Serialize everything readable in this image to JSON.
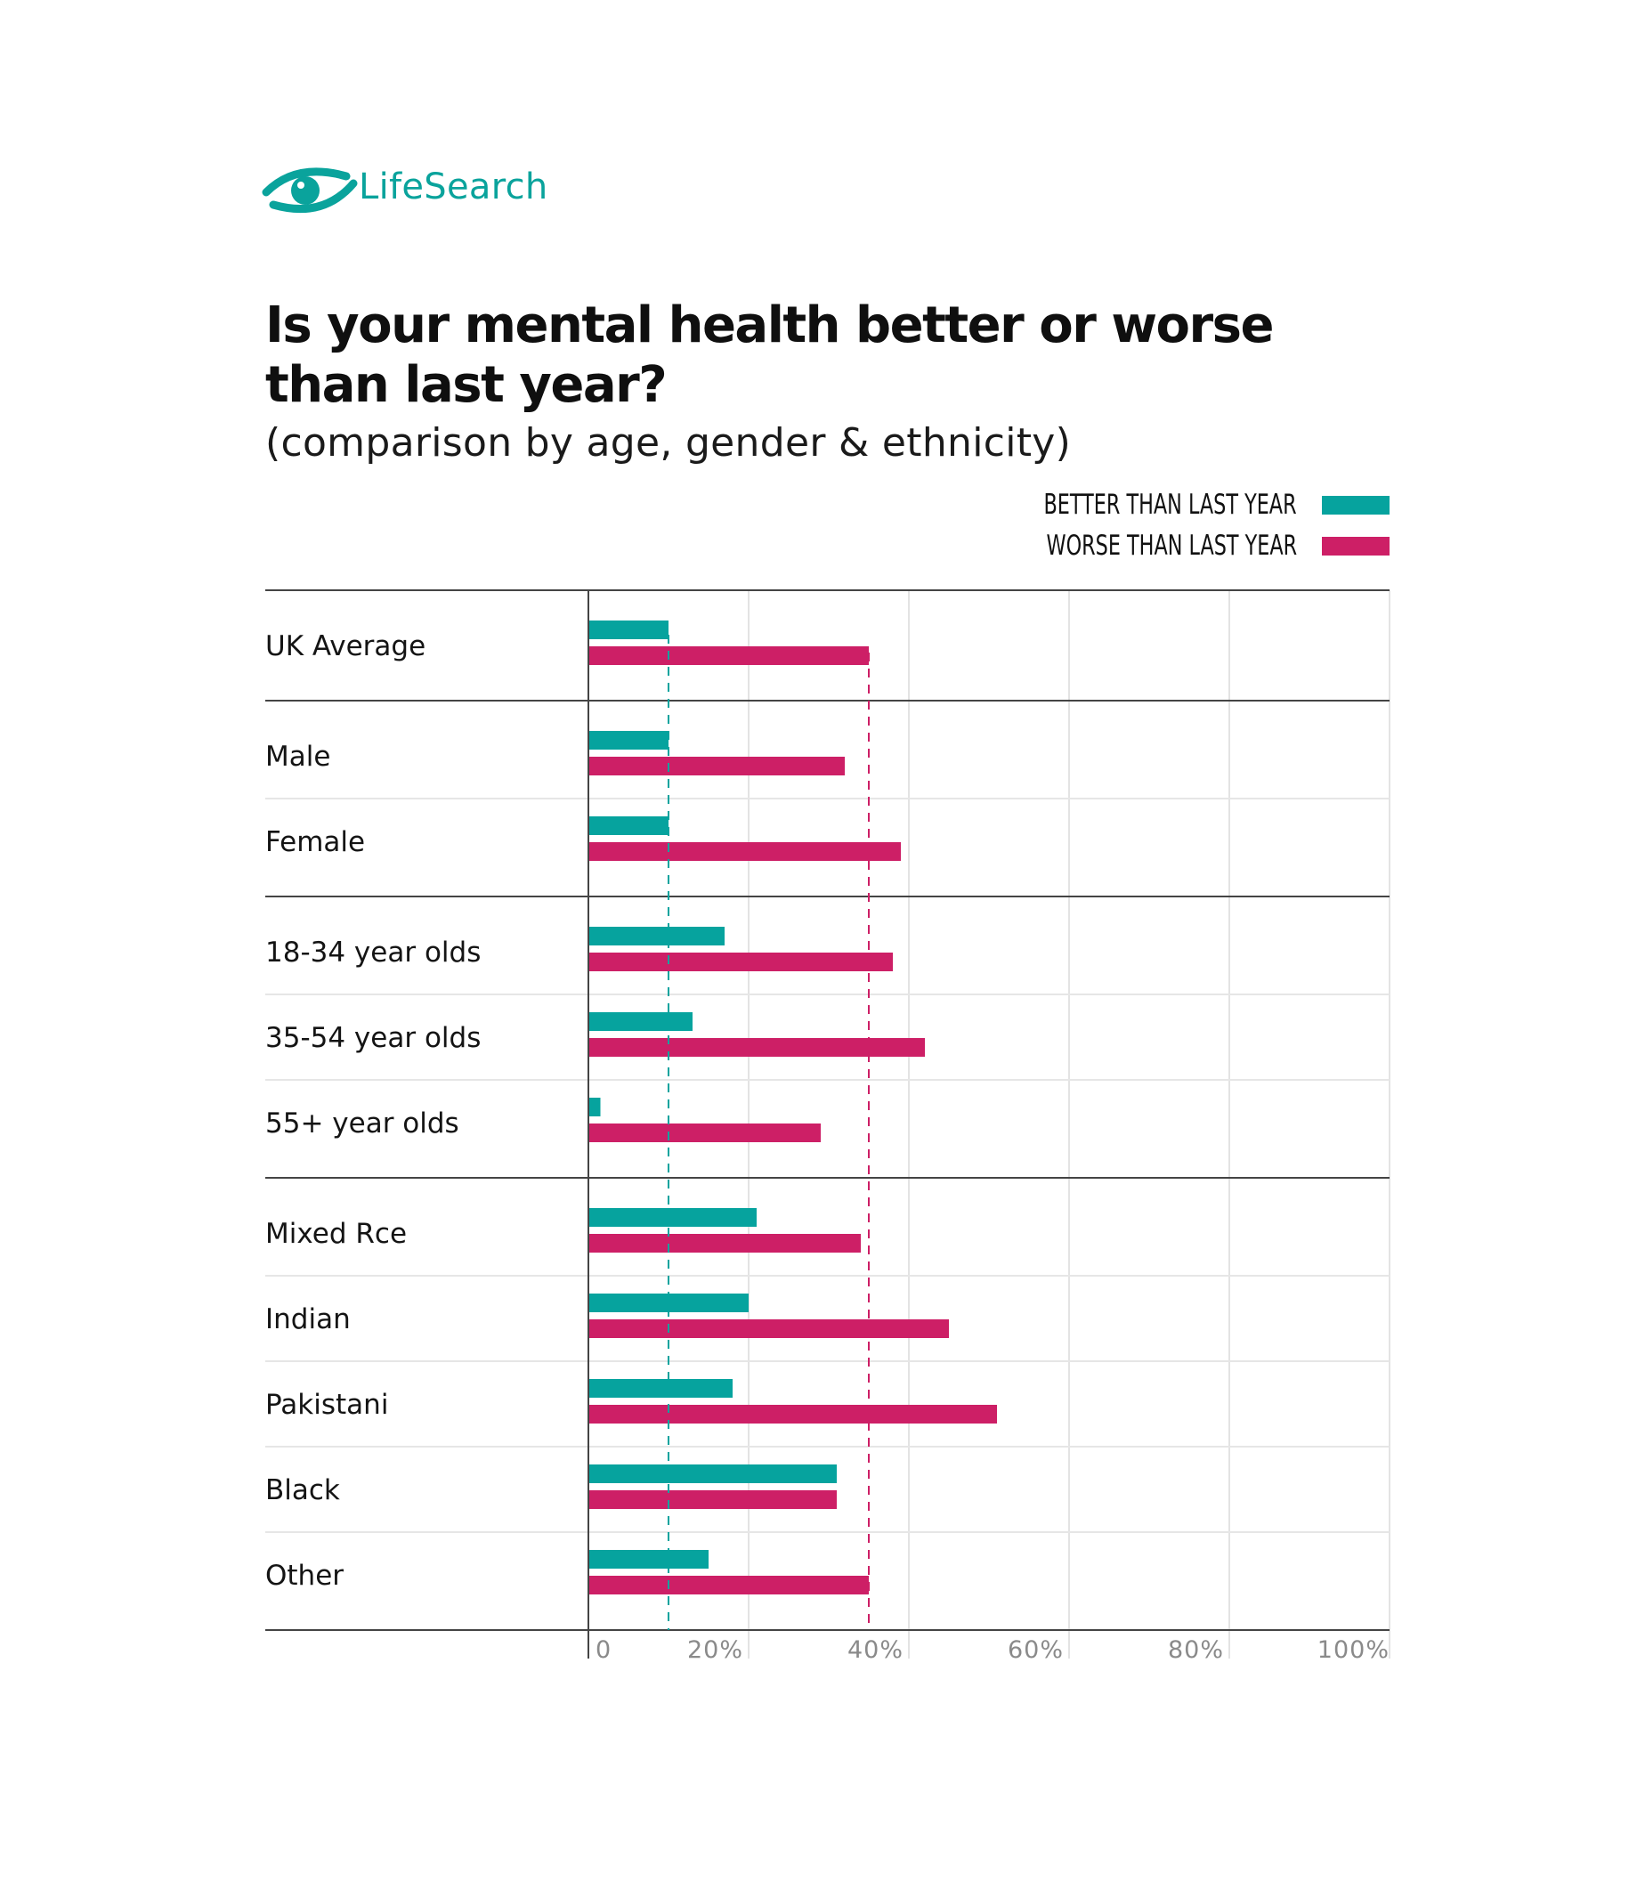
{
  "brand": {
    "name": "LifeSearch",
    "color": "#0aa39c",
    "icon": "eye-icon"
  },
  "colors": {
    "better": "#06a39e",
    "worse": "#cd1f66",
    "text": "#111111"
  },
  "chart_data": {
    "type": "bar",
    "orientation": "horizontal",
    "title": "Is your mental health better or worse than last year?",
    "subtitle": "(comparison by age, gender & ethnicity)",
    "xlabel": "",
    "ylabel": "",
    "xlim": [
      0,
      100
    ],
    "x_ticks": [
      "0",
      "20%",
      "40%",
      "60%",
      "80%",
      "100%"
    ],
    "legend": {
      "placement": "top-right",
      "entries": [
        "BETTER THAN LAST YEAR",
        "WORSE THAN LAST YEAR"
      ]
    },
    "grid": true,
    "reference_lines": {
      "better": 10,
      "worse": 35
    },
    "groups": [
      [
        "UK Average"
      ],
      [
        "Male",
        "Female"
      ],
      [
        "18-34 year olds",
        "35-54 year olds",
        "55+ year olds"
      ],
      [
        "Mixed Rce",
        "Indian",
        "Pakistani",
        "Black",
        "Other"
      ]
    ],
    "categories": [
      "UK Average",
      "Male",
      "Female",
      "18-34 year olds",
      "35-54 year olds",
      "55+ year olds",
      "Mixed Rce",
      "Indian",
      "Pakistani",
      "Black",
      "Other"
    ],
    "series": [
      {
        "name": "BETTER THAN LAST YEAR",
        "values": [
          10,
          10,
          10,
          17,
          13,
          1.5,
          21,
          20,
          18,
          31,
          15
        ]
      },
      {
        "name": "WORSE THAN LAST YEAR",
        "values": [
          35,
          32,
          39,
          38,
          42,
          29,
          34,
          45,
          51,
          31,
          35
        ]
      }
    ]
  }
}
